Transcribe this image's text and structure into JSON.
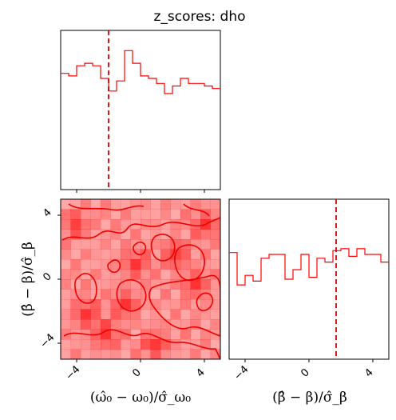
{
  "chart_data": {
    "type": "corner",
    "title": "z_scores: dho",
    "series_color": "#ff0000",
    "parameters": [
      {
        "name": "omega0",
        "label": "(ω̂₀ − ω₀)/σ̂_ω₀",
        "range": [
          -5,
          5
        ],
        "ticks": [
          -4,
          0,
          4
        ],
        "tick_labels": [
          "−4",
          "0",
          "4"
        ],
        "truth": -2.0
      },
      {
        "name": "beta",
        "label": "(β̂ − β)/σ̂_β",
        "range": [
          -5,
          5
        ],
        "ticks": [
          -4,
          0,
          4
        ],
        "tick_labels": [
          "−4",
          "0",
          "4"
        ],
        "truth": 1.7
      }
    ],
    "hist_omega0": {
      "bin_edges": [
        -5.0,
        -4.5,
        -4.0,
        -3.5,
        -3.0,
        -2.5,
        -2.0,
        -1.5,
        -1.0,
        -0.5,
        0.0,
        0.5,
        1.0,
        1.5,
        2.0,
        2.5,
        3.0,
        3.5,
        4.0,
        4.5,
        5.0
      ],
      "counts": [
        46,
        45,
        49,
        50,
        49,
        44,
        39,
        43,
        55,
        50,
        45,
        44,
        42,
        38,
        41,
        44,
        42,
        42,
        41,
        40
      ]
    },
    "hist_beta": {
      "bin_edges": [
        -5.0,
        -4.5,
        -4.0,
        -3.5,
        -3.0,
        -2.5,
        -2.0,
        -1.5,
        -1.0,
        -0.5,
        0.0,
        0.5,
        1.0,
        1.5,
        2.0,
        2.5,
        3.0,
        3.5,
        4.0,
        4.5,
        5.0
      ],
      "counts": [
        56,
        39,
        44,
        41,
        53,
        55,
        55,
        42,
        47,
        55,
        43,
        53,
        51,
        57,
        58,
        54,
        58,
        55,
        55,
        51
      ]
    },
    "hist2d": {
      "grid_size": 16,
      "x_range": [
        -5,
        5
      ],
      "y_range": [
        -5,
        5
      ],
      "peak_cells": [
        [
          1,
          2
        ],
        [
          4,
          13
        ],
        [
          6,
          10
        ],
        [
          11,
          5
        ],
        [
          13,
          8
        ],
        [
          14,
          2
        ],
        [
          2,
          11
        ],
        [
          9,
          14
        ],
        [
          7,
          6
        ]
      ]
    },
    "contour_levels": [
      "0.5 sigma",
      "1 sigma"
    ]
  }
}
